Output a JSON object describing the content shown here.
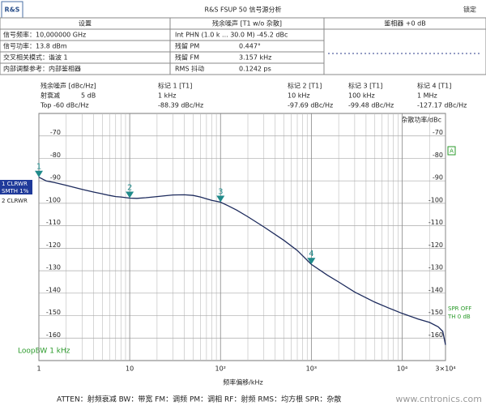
{
  "header": {
    "logo": "R&S",
    "title": "R&S FSUP 50 信号源分析",
    "status": "锁定",
    "table": {
      "columns": [
        "设置",
        "残余噪声 [T1 w/o 杂散]",
        "鉴相器 +0 dB"
      ],
      "rows": [
        [
          "信号频率：10,000000 GHz",
          "Int PHN (1.0 k ... 30.0 M) -45.2 dBc",
          ""
        ],
        [
          "信号功率：13.8 dBm",
          "残留 PM",
          "0.447°"
        ],
        [
          "交叉相关模式：谐波 1",
          "残留 FM",
          "3.157 kHz"
        ],
        [
          "内部调整参考：内部鉴相器",
          "RMS 抖动",
          "0.1242 ps"
        ]
      ]
    }
  },
  "settings": {
    "unit": "残余噪声 [dBc/Hz]",
    "atten_label": "射衰减",
    "atten_value": "5 dB",
    "top": "Top -60 dBc/Hz",
    "spur_label": "杂散功率/dBc",
    "trace1": "1 CLRWR",
    "smooth": "SMTH 1%",
    "trace2": "2 CLRWR",
    "a_box": "A",
    "spr": "SPR OFF",
    "th": "TH 0 dB",
    "loopbw": "LoopBW 1 kHz"
  },
  "chart_data": {
    "type": "line",
    "x_label": "频率偏移/kHz",
    "log_x": true,
    "grid": true,
    "x": [
      1,
      1.2,
      1.5,
      2,
      2.5,
      3,
      4,
      5,
      6,
      7,
      8,
      10,
      12,
      15,
      20,
      25,
      30,
      40,
      50,
      60,
      70,
      80,
      100,
      120,
      150,
      200,
      300,
      500,
      700,
      1000,
      1500,
      2000,
      3000,
      5000,
      7000,
      10000,
      15000,
      20000,
      25000,
      28000,
      30000
    ],
    "series": [
      {
        "name": "1 CLRWR",
        "color": "#1c2a5c",
        "values": [
          -88.4,
          -90,
          -90.8,
          -92,
          -93,
          -93.8,
          -95,
          -95.8,
          -96.5,
          -97,
          -97.2,
          -97.7,
          -97.8,
          -97.5,
          -97,
          -96.6,
          -96.3,
          -96.2,
          -96.5,
          -97.2,
          -98,
          -98.7,
          -99.5,
          -101,
          -103,
          -106,
          -110.5,
          -116.5,
          -121,
          -127.2,
          -132,
          -135,
          -139.5,
          -144,
          -146.5,
          -149,
          -151.5,
          -153,
          -155,
          -157,
          -163
        ]
      }
    ],
    "xlim": [
      1,
      30000
    ],
    "xticks": [
      1,
      10,
      {
        "value": 100,
        "label": "10²"
      },
      {
        "value": 1000,
        "label": "10³"
      },
      {
        "value": 10000,
        "label": "10⁴"
      },
      {
        "value": 30000,
        "label": "3×10⁴"
      }
    ],
    "xminorticks": [
      2,
      3,
      4,
      5,
      6,
      7,
      8,
      9,
      20,
      30,
      40,
      50,
      60,
      70,
      80,
      90,
      200,
      300,
      400,
      500,
      600,
      700,
      800,
      900,
      2000,
      3000,
      4000,
      5000,
      6000,
      7000,
      8000,
      9000,
      20000
    ],
    "ylim": [
      -170,
      -60
    ],
    "yticks": [
      -70,
      -80,
      -90,
      -100,
      -110,
      -120,
      -130,
      -140,
      -150,
      -160
    ],
    "markers": [
      {
        "name": "1",
        "title": "标记 1 [T1]",
        "freq": "1 kHz",
        "x": 1,
        "value": -88.39,
        "value_label": "-88.39 dBc/Hz"
      },
      {
        "name": "2",
        "title": "标记 2 [T1]",
        "freq": "10 kHz",
        "x": 10,
        "value": -97.69,
        "value_label": "-97.69 dBc/Hz"
      },
      {
        "name": "3",
        "title": "标记 3 [T1]",
        "freq": "100 kHz",
        "x": 100,
        "value": -99.48,
        "value_label": "-99.48 dBc/Hz"
      },
      {
        "name": "4",
        "title": "标记 4 [T1]",
        "freq": "1 MHz",
        "x": 1000,
        "value": -127.17,
        "value_label": "-127.17 dBc/Hz"
      }
    ],
    "marker_color": "#1f8a8a"
  },
  "footer": {
    "legend": "ATTEN：射频衰减  BW：带宽  FM：调频  PM：调相  RF：射频  RMS：均方根  SPR：杂散",
    "watermark": "www.cntronics.com"
  }
}
